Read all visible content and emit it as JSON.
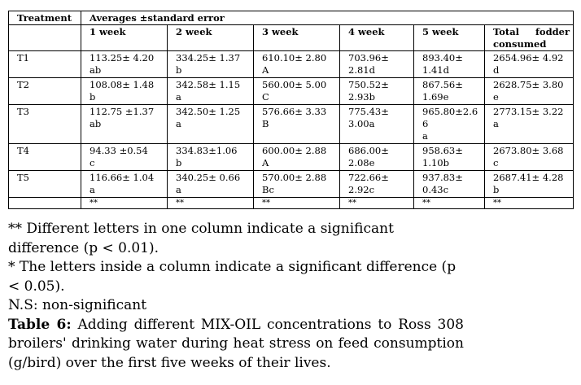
{
  "table": {
    "header_treatment": "Treatment",
    "header_group": "Averages ±standard error",
    "columns": [
      "1 week",
      "2 week",
      "3 week",
      "4 week",
      "5 week",
      "Total fodder consumed"
    ],
    "rows": [
      {
        "treatment": "T1",
        "cells": [
          [
            "113.25± 4.20",
            "ab"
          ],
          [
            "334.25± 1.37",
            "b"
          ],
          [
            "610.10± 2.80",
            "A"
          ],
          [
            "703.96±",
            "2.81d"
          ],
          [
            "893.40±",
            "1.41d"
          ],
          [
            "2654.96± 4.92",
            "d"
          ]
        ]
      },
      {
        "treatment": "T2",
        "cells": [
          [
            "108.08± 1.48",
            "b"
          ],
          [
            "342.58± 1.15",
            "a"
          ],
          [
            "560.00± 5.00",
            "C"
          ],
          [
            "750.52±",
            "2.93b"
          ],
          [
            "867.56±",
            "1.69e"
          ],
          [
            "2628.75± 3.80",
            "e"
          ]
        ]
      },
      {
        "treatment": "T3",
        "cells": [
          [
            "112.75 ±1.37",
            "ab"
          ],
          [
            "342.50± 1.25",
            "a"
          ],
          [
            "576.66± 3.33",
            "B"
          ],
          [
            "775.43±",
            "3.00a"
          ],
          [
            "965.80±2.6",
            "6",
            "a"
          ],
          [
            "2773.15± 3.22",
            "a"
          ]
        ]
      },
      {
        "treatment": "T4",
        "cells": [
          [
            "94.33 ±0.54",
            "c"
          ],
          [
            "334.83±1.06",
            "b"
          ],
          [
            "600.00± 2.88",
            "A"
          ],
          [
            "686.00±",
            "2.08e"
          ],
          [
            "958.63±",
            "1.10b"
          ],
          [
            "2673.80± 3.68",
            "c"
          ]
        ]
      },
      {
        "treatment": "T5",
        "cells": [
          [
            "116.66± 1.04",
            "a"
          ],
          [
            "340.25± 0.66",
            "a"
          ],
          [
            "570.00± 2.88",
            "Bc"
          ],
          [
            "722.66±",
            "2.92c"
          ],
          [
            "937.83±",
            "0.43c"
          ],
          [
            "2687.41± 4.28",
            "b"
          ]
        ]
      }
    ],
    "significance_row": [
      "",
      "**",
      "**",
      "**",
      "**",
      "**",
      "**"
    ]
  },
  "notes": [
    "** Different letters in one column indicate a significant difference (p < 0.01).",
    "* The letters inside a column indicate a significant difference (p < 0.05).",
    "N.S: non-significant"
  ],
  "caption": {
    "label": "Table 6:",
    "text": " Adding different MIX-OIL concentrations to Ross 308 broilers' drinking water during heat stress on feed consumption (g/bird) over the first five weeks of their lives."
  }
}
